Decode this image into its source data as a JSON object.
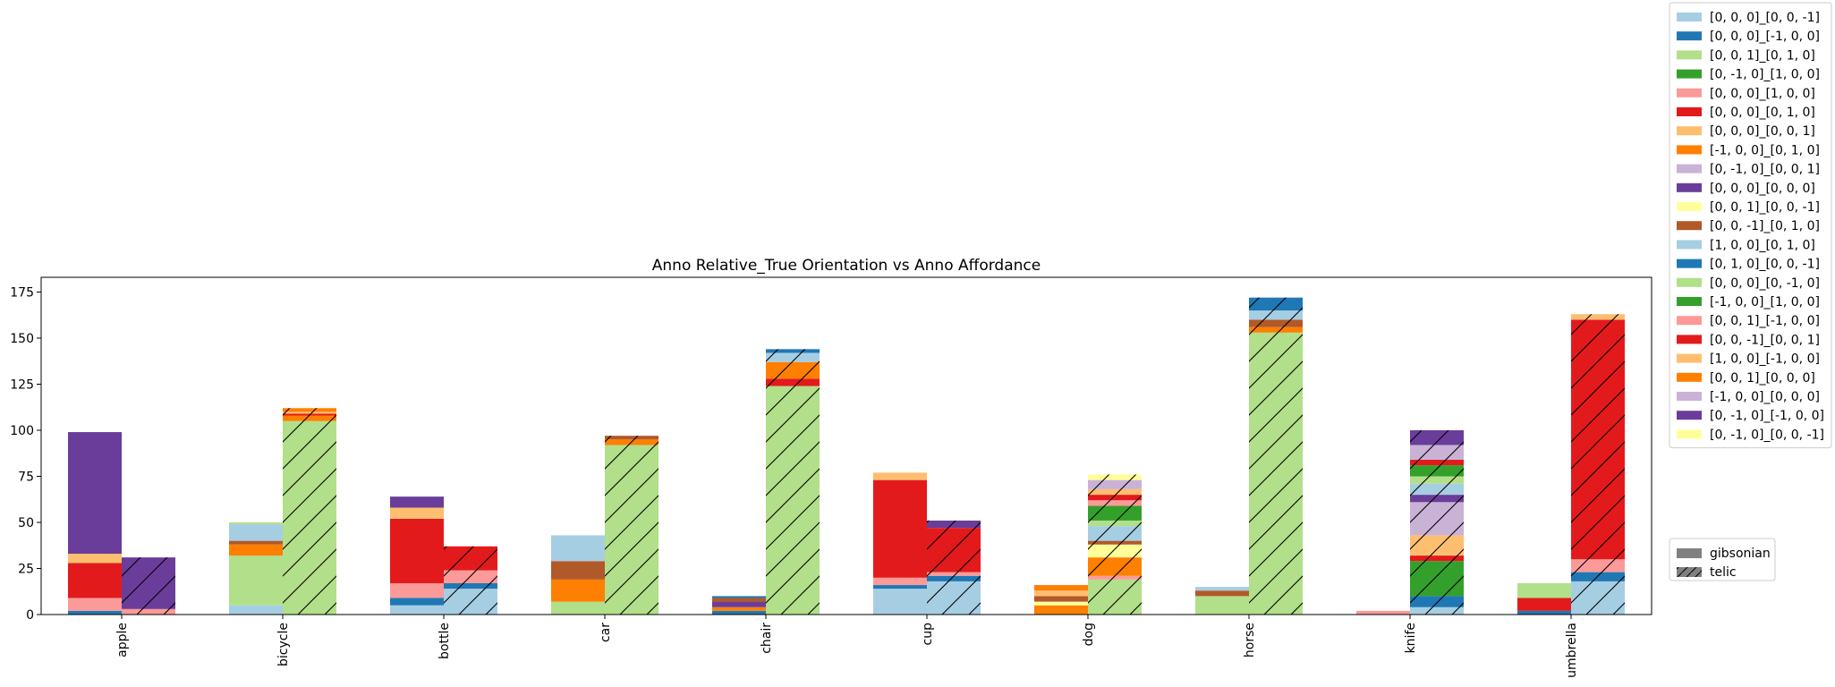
{
  "chart_data": {
    "type": "bar",
    "title": "Anno Relative_True Orientation vs Anno Affordance",
    "xlabel": "",
    "ylabel": "",
    "ylim": [
      0,
      183
    ],
    "yticks": [
      0,
      25,
      50,
      75,
      100,
      125,
      150,
      175
    ],
    "categories": [
      "apple",
      "bicycle",
      "bottle",
      "car",
      "chair",
      "cup",
      "dog",
      "horse",
      "knife",
      "umbrella"
    ],
    "stacking": "stacked bars, two groups per category (gibsonian left, telic right)",
    "series": [
      {
        "name": "[0, 0, 0]_[0, 0, -1]",
        "color": "#a6cee3",
        "gibsonian": [
          0,
          5,
          5,
          0,
          0,
          14,
          0,
          0,
          0,
          0
        ],
        "telic": [
          0,
          0,
          14,
          0,
          0,
          18,
          0,
          0,
          4,
          18
        ]
      },
      {
        "name": "[0, 0, 0]_[-1, 0, 0]",
        "color": "#1f78b4",
        "gibsonian": [
          2,
          0,
          4,
          0,
          2,
          2,
          0,
          0,
          0,
          2
        ],
        "telic": [
          0,
          0,
          3,
          0,
          0,
          3,
          0,
          0,
          6,
          5
        ]
      },
      {
        "name": "[0, 0, 1]_[0, 1, 0]",
        "color": "#b2df8a",
        "gibsonian": [
          0,
          27,
          0,
          7,
          0,
          0,
          0,
          10,
          0,
          0
        ],
        "telic": [
          0,
          105,
          0,
          92,
          124,
          0,
          19,
          153,
          0,
          0
        ]
      },
      {
        "name": "[0, -1, 0]_[1, 0, 0]",
        "color": "#33a02c",
        "gibsonian": [
          0,
          0,
          0,
          0,
          0,
          0,
          0,
          0,
          0,
          0
        ],
        "telic": [
          0,
          0,
          0,
          0,
          0,
          0,
          0,
          0,
          19,
          0
        ]
      },
      {
        "name": "[0, 0, 0]_[1, 0, 0]",
        "color": "#fb9a99",
        "gibsonian": [
          7,
          0,
          8,
          0,
          0,
          4,
          0,
          0,
          2,
          0
        ],
        "telic": [
          3,
          0,
          7,
          0,
          0,
          2,
          2,
          0,
          0,
          7
        ]
      },
      {
        "name": "[0, 0, 0]_[0, 1, 0]",
        "color": "#e31a1c",
        "gibsonian": [
          19,
          0,
          35,
          0,
          0,
          53,
          0,
          0,
          0,
          7
        ],
        "telic": [
          0,
          0,
          13,
          0,
          4,
          24,
          0,
          0,
          3,
          130
        ]
      },
      {
        "name": "[0, 0, 0]_[0, 0, 1]",
        "color": "#fdbf6f",
        "gibsonian": [
          5,
          0,
          6,
          0,
          0,
          4,
          0,
          0,
          0,
          0
        ],
        "telic": [
          0,
          0,
          0,
          0,
          0,
          0,
          0,
          0,
          11,
          3
        ]
      },
      {
        "name": "[-1, 0, 0]_[0, 1, 0]",
        "color": "#ff7f00",
        "gibsonian": [
          0,
          6,
          0,
          12,
          2,
          0,
          5,
          0,
          0,
          0
        ],
        "telic": [
          0,
          3,
          0,
          3,
          9,
          0,
          10,
          3,
          0,
          0
        ]
      },
      {
        "name": "[0, -1, 0]_[0, 0, 1]",
        "color": "#cab2d6",
        "gibsonian": [
          0,
          0,
          0,
          0,
          0,
          0,
          0,
          0,
          0,
          0
        ],
        "telic": [
          0,
          0,
          0,
          0,
          0,
          0,
          0,
          0,
          18,
          0
        ]
      },
      {
        "name": "[0, 0, 0]_[0, 0, 0]",
        "color": "#6a3d9a",
        "gibsonian": [
          66,
          0,
          6,
          0,
          3,
          0,
          0,
          0,
          0,
          0
        ],
        "telic": [
          28,
          0,
          0,
          0,
          0,
          4,
          0,
          0,
          4,
          0
        ]
      },
      {
        "name": "[0, 0, 1]_[0, 0, -1]",
        "color": "#ffff99",
        "gibsonian": [
          0,
          0,
          0,
          0,
          0,
          0,
          2,
          0,
          0,
          0
        ],
        "telic": [
          0,
          0,
          0,
          0,
          0,
          0,
          7,
          0,
          0,
          0
        ]
      },
      {
        "name": "[0, 0, -1]_[0, 1, 0]",
        "color": "#b15928",
        "gibsonian": [
          0,
          2,
          0,
          10,
          2,
          0,
          3,
          3,
          0,
          0
        ],
        "telic": [
          0,
          0,
          0,
          2,
          0,
          0,
          2,
          4,
          0,
          0
        ]
      },
      {
        "name": "[1, 0, 0]_[0, 1, 0]",
        "color": "#a6cee3",
        "gibsonian": [
          0,
          9,
          0,
          14,
          0,
          0,
          0,
          2,
          0,
          0
        ],
        "telic": [
          0,
          0,
          0,
          0,
          5,
          0,
          8,
          5,
          6,
          0
        ]
      },
      {
        "name": "[0, 1, 0]_[0, 0, -1]",
        "color": "#1f78b4",
        "gibsonian": [
          0,
          0,
          0,
          0,
          1,
          0,
          0,
          0,
          0,
          0
        ],
        "telic": [
          0,
          0,
          0,
          0,
          2,
          0,
          0,
          7,
          0,
          0
        ]
      },
      {
        "name": "[0, 0, 0]_[0, -1, 0]",
        "color": "#b2df8a",
        "gibsonian": [
          0,
          1,
          0,
          0,
          0,
          0,
          0,
          0,
          0,
          8
        ],
        "telic": [
          0,
          0,
          0,
          0,
          0,
          0,
          3,
          0,
          4,
          0
        ]
      },
      {
        "name": "[-1, 0, 0]_[1, 0, 0]",
        "color": "#33a02c",
        "gibsonian": [
          0,
          0,
          0,
          0,
          0,
          0,
          0,
          0,
          0,
          0
        ],
        "telic": [
          0,
          0,
          0,
          0,
          0,
          0,
          8,
          0,
          6,
          0
        ]
      },
      {
        "name": "[0, 0, 1]_[-1, 0, 0]",
        "color": "#fb9a99",
        "gibsonian": [
          0,
          0,
          0,
          0,
          0,
          0,
          0,
          0,
          0,
          0
        ],
        "telic": [
          0,
          0,
          0,
          0,
          0,
          0,
          3,
          0,
          0,
          0
        ]
      },
      {
        "name": "[0, 0, -1]_[0, 0, 1]",
        "color": "#e31a1c",
        "gibsonian": [
          0,
          0,
          0,
          0,
          0,
          0,
          0,
          0,
          0,
          0
        ],
        "telic": [
          0,
          1,
          0,
          0,
          0,
          0,
          3,
          0,
          3,
          0
        ]
      },
      {
        "name": "[1, 0, 0]_[-1, 0, 0]",
        "color": "#fdbf6f",
        "gibsonian": [
          0,
          0,
          0,
          0,
          0,
          0,
          3,
          0,
          0,
          0
        ],
        "telic": [
          0,
          1,
          0,
          0,
          0,
          0,
          3,
          0,
          0,
          0
        ]
      },
      {
        "name": "[0, 0, 1]_[0, 0, 0]",
        "color": "#ff7f00",
        "gibsonian": [
          0,
          0,
          0,
          0,
          0,
          0,
          3,
          0,
          0,
          0
        ],
        "telic": [
          0,
          2,
          0,
          0,
          0,
          0,
          0,
          0,
          0,
          0
        ]
      },
      {
        "name": "[-1, 0, 0]_[0, 0, 0]",
        "color": "#cab2d6",
        "gibsonian": [
          0,
          0,
          0,
          0,
          0,
          0,
          0,
          0,
          0,
          0
        ],
        "telic": [
          0,
          0,
          0,
          0,
          0,
          0,
          5,
          0,
          8,
          0
        ]
      },
      {
        "name": "[0, -1, 0]_[-1, 0, 0]",
        "color": "#6a3d9a",
        "gibsonian": [
          0,
          0,
          0,
          0,
          0,
          0,
          0,
          0,
          0,
          0
        ],
        "telic": [
          0,
          0,
          0,
          0,
          0,
          0,
          0,
          0,
          8,
          0
        ]
      },
      {
        "name": "[0, -1, 0]_[0, 0, -1]",
        "color": "#ffff99",
        "gibsonian": [
          0,
          0,
          0,
          0,
          0,
          0,
          0,
          0,
          0,
          0
        ],
        "telic": [
          0,
          0,
          0,
          0,
          0,
          0,
          3,
          0,
          0,
          0
        ]
      }
    ],
    "group_legend": [
      {
        "name": "gibsonian",
        "hatch": false
      },
      {
        "name": "telic",
        "hatch": true
      }
    ],
    "legend": "right, outside plot",
    "grid": false
  }
}
